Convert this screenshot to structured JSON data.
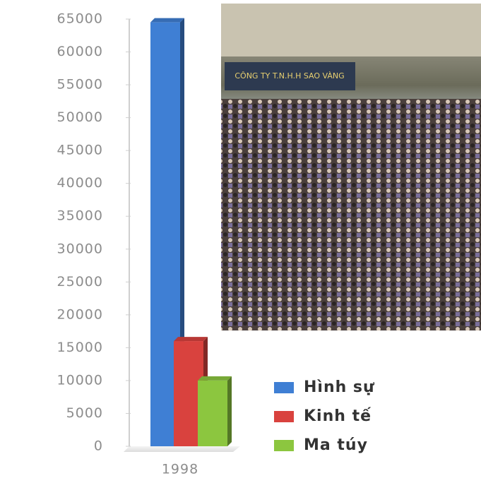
{
  "chart_data": {
    "type": "bar",
    "categories": [
      "1998"
    ],
    "series": [
      {
        "name": "Hình sự",
        "color": "#3f7fd4",
        "values": [
          64500
        ]
      },
      {
        "name": "Kinh tế",
        "color": "#d9423e",
        "values": [
          16000
        ]
      },
      {
        "name": "Ma túy",
        "color": "#8cc63f",
        "values": [
          10000
        ]
      }
    ],
    "ylim": [
      0,
      65000
    ],
    "yticks": [
      0,
      5000,
      10000,
      15000,
      20000,
      25000,
      30000,
      35000,
      40000,
      45000,
      50000,
      55000,
      60000,
      65000
    ],
    "grid": false,
    "legend": "right"
  }
}
